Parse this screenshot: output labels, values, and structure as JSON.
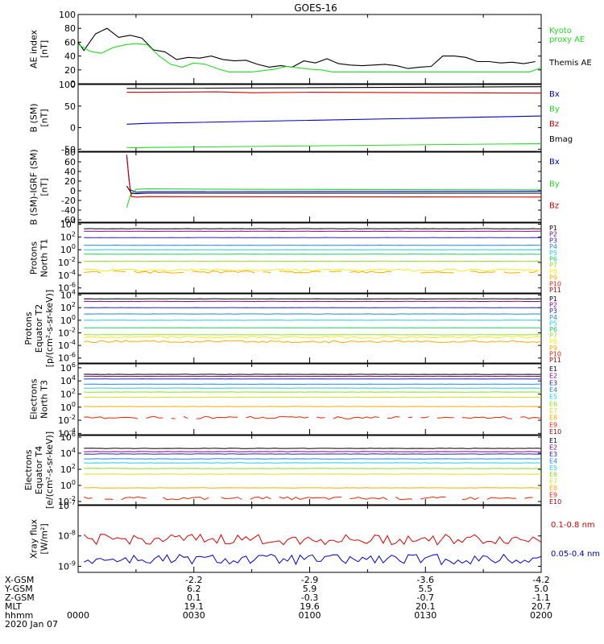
{
  "title": "GOES-16",
  "colors": {
    "black": "#000000",
    "blue": "#0000cc",
    "green": "#22dd22",
    "red": "#dd0000",
    "P1": "#000000",
    "P2": "#880088",
    "P3": "#2222cc",
    "P4": "#1e88e5",
    "P5": "#22ccee",
    "P6": "#22cc66",
    "P7": "#99dd22",
    "P8": "#eeee22",
    "P9": "#ffaa00",
    "P10": "#dd2200",
    "P11": "#aa0000",
    "E1": "#000000",
    "E2": "#880088",
    "E3": "#2222cc",
    "E4": "#1e88e5",
    "E5": "#22ccee",
    "E6": "#88dd22",
    "E7": "#dddd22",
    "E8": "#ffaa00",
    "E9": "#ee2200",
    "E10": "#aa0000"
  },
  "footer": {
    "labels": [
      "X-GSM",
      "Y-GSM",
      "Z-GSM",
      "MLT",
      "hhmm",
      "2020 Jan 07"
    ],
    "columns": [
      {
        "hhmm": "0000",
        "xgsm": "",
        "ygsm": "",
        "zgsm": "",
        "mlt": ""
      },
      {
        "hhmm": "0030",
        "xgsm": "-2.2",
        "ygsm": "6.2",
        "zgsm": "0.1",
        "mlt": "19.1"
      },
      {
        "hhmm": "0100",
        "xgsm": "-2.9",
        "ygsm": "5.9",
        "zgsm": "-0.3",
        "mlt": "19.6"
      },
      {
        "hhmm": "0130",
        "xgsm": "-3.6",
        "ygsm": "5.5",
        "zgsm": "-0.7",
        "mlt": "20.1"
      },
      {
        "hhmm": "0200",
        "xgsm": "-4.2",
        "ygsm": "5.0",
        "zgsm": "-1.1",
        "mlt": "20.7"
      }
    ]
  },
  "chart_data": [
    {
      "type": "line",
      "id": "ae",
      "ylabel": "AE index\n[nT]",
      "scale": "linear",
      "ylim": [
        0,
        100
      ],
      "yticks": [
        0,
        20,
        40,
        60,
        80,
        100
      ],
      "series": [
        {
          "name": "Themis AE",
          "color": "black",
          "points": [
            [
              0,
              60
            ],
            [
              0.05,
              48
            ],
            [
              0.15,
              72
            ],
            [
              0.25,
              80
            ],
            [
              0.35,
              67
            ],
            [
              0.45,
              70
            ],
            [
              0.55,
              66
            ],
            [
              0.65,
              49
            ],
            [
              0.75,
              46
            ],
            [
              0.85,
              35
            ],
            [
              0.95,
              38
            ],
            [
              1.05,
              37
            ],
            [
              1.15,
              40
            ],
            [
              1.25,
              35
            ],
            [
              1.35,
              33
            ],
            [
              1.45,
              34
            ],
            [
              1.55,
              28
            ],
            [
              1.65,
              24
            ],
            [
              1.75,
              26
            ],
            [
              1.85,
              24
            ],
            [
              1.95,
              33
            ],
            [
              2.05,
              30
            ],
            [
              2.15,
              36
            ],
            [
              2.25,
              29
            ],
            [
              2.35,
              27
            ],
            [
              2.45,
              26
            ],
            [
              2.55,
              27
            ],
            [
              2.65,
              28
            ],
            [
              2.75,
              26
            ],
            [
              2.85,
              22
            ],
            [
              2.95,
              24
            ],
            [
              3.05,
              25
            ],
            [
              3.15,
              40
            ],
            [
              3.25,
              40
            ],
            [
              3.35,
              38
            ],
            [
              3.45,
              32
            ],
            [
              3.55,
              32
            ],
            [
              3.65,
              30
            ],
            [
              3.75,
              31
            ],
            [
              3.85,
              29
            ],
            [
              3.95,
              32
            ]
          ]
        },
        {
          "name": "Kyoto\nproxy AE",
          "color": "green",
          "points": [
            [
              0,
              57
            ],
            [
              0.1,
              47
            ],
            [
              0.2,
              44
            ],
            [
              0.3,
              52
            ],
            [
              0.4,
              56
            ],
            [
              0.5,
              58
            ],
            [
              0.6,
              56
            ],
            [
              0.7,
              40
            ],
            [
              0.8,
              28
            ],
            [
              0.9,
              24
            ],
            [
              1.0,
              30
            ],
            [
              1.1,
              28
            ],
            [
              1.2,
              22
            ],
            [
              1.3,
              17
            ],
            [
              1.4,
              17
            ],
            [
              1.5,
              17
            ],
            [
              1.6,
              19
            ],
            [
              1.7,
              21
            ],
            [
              1.8,
              25
            ],
            [
              1.9,
              23
            ],
            [
              2.0,
              21
            ],
            [
              2.1,
              20
            ],
            [
              2.2,
              17
            ],
            [
              2.3,
              17
            ],
            [
              2.4,
              17
            ],
            [
              2.5,
              17
            ],
            [
              2.6,
              17
            ],
            [
              2.7,
              17
            ],
            [
              2.8,
              17
            ],
            [
              2.9,
              17
            ],
            [
              3.0,
              17
            ],
            [
              3.1,
              17
            ],
            [
              3.2,
              17
            ],
            [
              3.3,
              17
            ],
            [
              3.4,
              17
            ],
            [
              3.5,
              17
            ],
            [
              3.6,
              17
            ],
            [
              3.7,
              17
            ],
            [
              3.8,
              17
            ],
            [
              3.9,
              17
            ],
            [
              4.0,
              23
            ]
          ]
        }
      ]
    },
    {
      "type": "line",
      "id": "bsm",
      "ylabel": "B (SM)\n[nT]",
      "scale": "linear",
      "ylim": [
        -55,
        100
      ],
      "yticks": [
        -50,
        0,
        50,
        100
      ],
      "series": [
        {
          "name": "Bmag",
          "color": "black",
          "points": [
            [
              0.42,
              91
            ],
            [
              0.52,
              91
            ],
            [
              0.6,
              91
            ],
            [
              4.0,
              95
            ]
          ]
        },
        {
          "name": "Bz",
          "color": "red",
          "points": [
            [
              0.42,
              82
            ],
            [
              0.52,
              82
            ],
            [
              0.6,
              82
            ],
            [
              1.2,
              83
            ],
            [
              1.5,
              81
            ],
            [
              2.0,
              82
            ],
            [
              4.0,
              80
            ]
          ]
        },
        {
          "name": "Bx",
          "color": "blue",
          "points": [
            [
              0.42,
              8
            ],
            [
              0.52,
              9
            ],
            [
              0.6,
              10
            ],
            [
              4.0,
              27
            ]
          ]
        },
        {
          "name": "By",
          "color": "green",
          "points": [
            [
              0.42,
              -46
            ],
            [
              0.52,
              -47
            ],
            [
              0.6,
              -46
            ],
            [
              4.0,
              -37
            ]
          ]
        }
      ]
    },
    {
      "type": "line",
      "id": "bsm-igrf",
      "ylabel": "B (SM)-IGRF (SM)\n[nT]",
      "scale": "linear",
      "ylim": [
        -65,
        80
      ],
      "yticks": [
        -60,
        -40,
        -20,
        0,
        20,
        40,
        60,
        80
      ],
      "series": [
        {
          "name": "Bx",
          "color": "blue",
          "points": [
            [
              0.42,
              70
            ],
            [
              0.45,
              2
            ],
            [
              0.5,
              -3
            ],
            [
              0.6,
              -2
            ],
            [
              4.0,
              -1
            ]
          ]
        },
        {
          "name": "By",
          "color": "green",
          "points": [
            [
              0.42,
              -35
            ],
            [
              0.45,
              -10
            ],
            [
              0.5,
              3
            ],
            [
              0.6,
              4
            ],
            [
              1.5,
              3
            ],
            [
              4.0,
              2
            ]
          ]
        },
        {
          "name": "Bz",
          "color": "red",
          "points": [
            [
              0.42,
              75
            ],
            [
              0.44,
              20
            ],
            [
              0.46,
              -12
            ],
            [
              0.5,
              -13
            ],
            [
              0.6,
              -12
            ],
            [
              4.0,
              -13
            ]
          ]
        },
        {
          "name": "Bmag",
          "color": "black",
          "points": [
            [
              0.42,
              10
            ],
            [
              0.46,
              -5
            ],
            [
              0.5,
              -6
            ],
            [
              0.6,
              -5
            ],
            [
              4.0,
              -5
            ]
          ]
        }
      ]
    },
    {
      "type": "line",
      "id": "protons-t1",
      "ylabel": "Protons\nNorth T1",
      "scale": "log",
      "ylim": [
        -6.8,
        4.2
      ],
      "yticks": [
        4,
        2,
        0,
        -2,
        -4,
        -6
      ],
      "series": [
        {
          "name": "P1",
          "color": "P1",
          "level": 3.3
        },
        {
          "name": "P2",
          "color": "P2",
          "level": 2.9
        },
        {
          "name": "P3",
          "color": "P3",
          "level": 1.9
        },
        {
          "name": "P4",
          "color": "P4",
          "level": 0.7
        },
        {
          "name": "P5",
          "color": "P5",
          "level": 0.0
        },
        {
          "name": "P6",
          "color": "P6",
          "level": -0.7
        },
        {
          "name": "P7",
          "color": "P7",
          "level": -1.8
        },
        {
          "name": "P8",
          "color": "P8",
          "level": -3.2,
          "noisy": true
        },
        {
          "name": "P9",
          "color": "P9",
          "level": -3.5,
          "noisy": true,
          "gappy": true
        },
        {
          "name": "P10",
          "color": "P10",
          "level": null
        },
        {
          "name": "P11",
          "color": "P11",
          "level": null
        }
      ]
    },
    {
      "type": "line",
      "id": "protons-t2",
      "ylabel": "Protons\nEquator T2\n[p/(cm²-s-sr-keV)]",
      "scale": "log",
      "ylim": [
        -6.8,
        4.2
      ],
      "yticks": [
        4,
        2,
        0,
        -2,
        -4,
        -6
      ],
      "series": [
        {
          "name": "P1",
          "color": "P1",
          "level": 3.4
        },
        {
          "name": "P2",
          "color": "P2",
          "level": 3.0
        },
        {
          "name": "P3",
          "color": "P3",
          "level": 2.0
        },
        {
          "name": "P4",
          "color": "P4",
          "level": 1.0
        },
        {
          "name": "P5",
          "color": "P5",
          "level": 0.0
        },
        {
          "name": "P6",
          "color": "P6",
          "level": -1.2
        },
        {
          "name": "P7",
          "color": "P7",
          "level": -2.3
        },
        {
          "name": "P8",
          "color": "P8",
          "level": -2.7,
          "noisy": true
        },
        {
          "name": "P9",
          "color": "P9",
          "level": -3.4,
          "noisy": true
        },
        {
          "name": "P10",
          "color": "P10",
          "level": null
        },
        {
          "name": "P11",
          "color": "P11",
          "level": null
        }
      ]
    },
    {
      "type": "line",
      "id": "electrons-t3",
      "ylabel": "Electrons\nNorth T3",
      "scale": "log",
      "ylim": [
        -4.2,
        6.6
      ],
      "yticks": [
        6,
        4,
        2,
        0,
        -2,
        -4
      ],
      "series": [
        {
          "name": "E1",
          "color": "E1",
          "level": 5.0
        },
        {
          "name": "E2",
          "color": "E2",
          "level": 4.7
        },
        {
          "name": "E3",
          "color": "E3",
          "level": 4.3
        },
        {
          "name": "E4",
          "color": "E4",
          "level": 3.5
        },
        {
          "name": "E5",
          "color": "E5",
          "level": 2.9
        },
        {
          "name": "E6",
          "color": "E6",
          "level": 2.3
        },
        {
          "name": "E7",
          "color": "E7",
          "level": 1.5
        },
        {
          "name": "E8",
          "color": "E8",
          "level": 0.1
        },
        {
          "name": "E9",
          "color": "E9",
          "level": -1.6,
          "noisy": true,
          "gappy": true
        },
        {
          "name": "E10",
          "color": "E10",
          "level": null
        }
      ]
    },
    {
      "type": "line",
      "id": "electrons-t4",
      "ylabel": "Electrons\nEquator T4\n[e/(cm²-s-sr-keV)]",
      "scale": "log",
      "ylim": [
        -2.4,
        6.2
      ],
      "yticks": [
        6,
        4,
        2,
        0,
        -2
      ],
      "series": [
        {
          "name": "E1",
          "color": "E1",
          "level": 4.6
        },
        {
          "name": "E2",
          "color": "E2",
          "level": 4.2
        },
        {
          "name": "E3",
          "color": "E3",
          "level": 3.9
        },
        {
          "name": "E4",
          "color": "E4",
          "level": 3.3
        },
        {
          "name": "E5",
          "color": "E5",
          "level": 2.8
        },
        {
          "name": "E6",
          "color": "E6",
          "level": 2.1
        },
        {
          "name": "E7",
          "color": "E7",
          "level": 1.4
        },
        {
          "name": "E8",
          "color": "E8",
          "level": -0.3
        },
        {
          "name": "E9",
          "color": "E9",
          "level": -1.6,
          "noisy": true,
          "gappy": true
        },
        {
          "name": "E10",
          "color": "E10",
          "level": null
        }
      ]
    },
    {
      "type": "line",
      "id": "xray",
      "ylabel": "Xray flux\n[W/m²]",
      "scale": "log",
      "ylim": [
        -9.2,
        -7.0
      ],
      "yticks": [
        -7,
        -8,
        -9
      ],
      "series": [
        {
          "name": "0.1-0.8 nm",
          "color": "red",
          "level": -8.12,
          "noisy": true
        },
        {
          "name": "0.05-0.4 nm",
          "color": "blue",
          "level": -8.78,
          "noisy": true
        }
      ]
    }
  ]
}
